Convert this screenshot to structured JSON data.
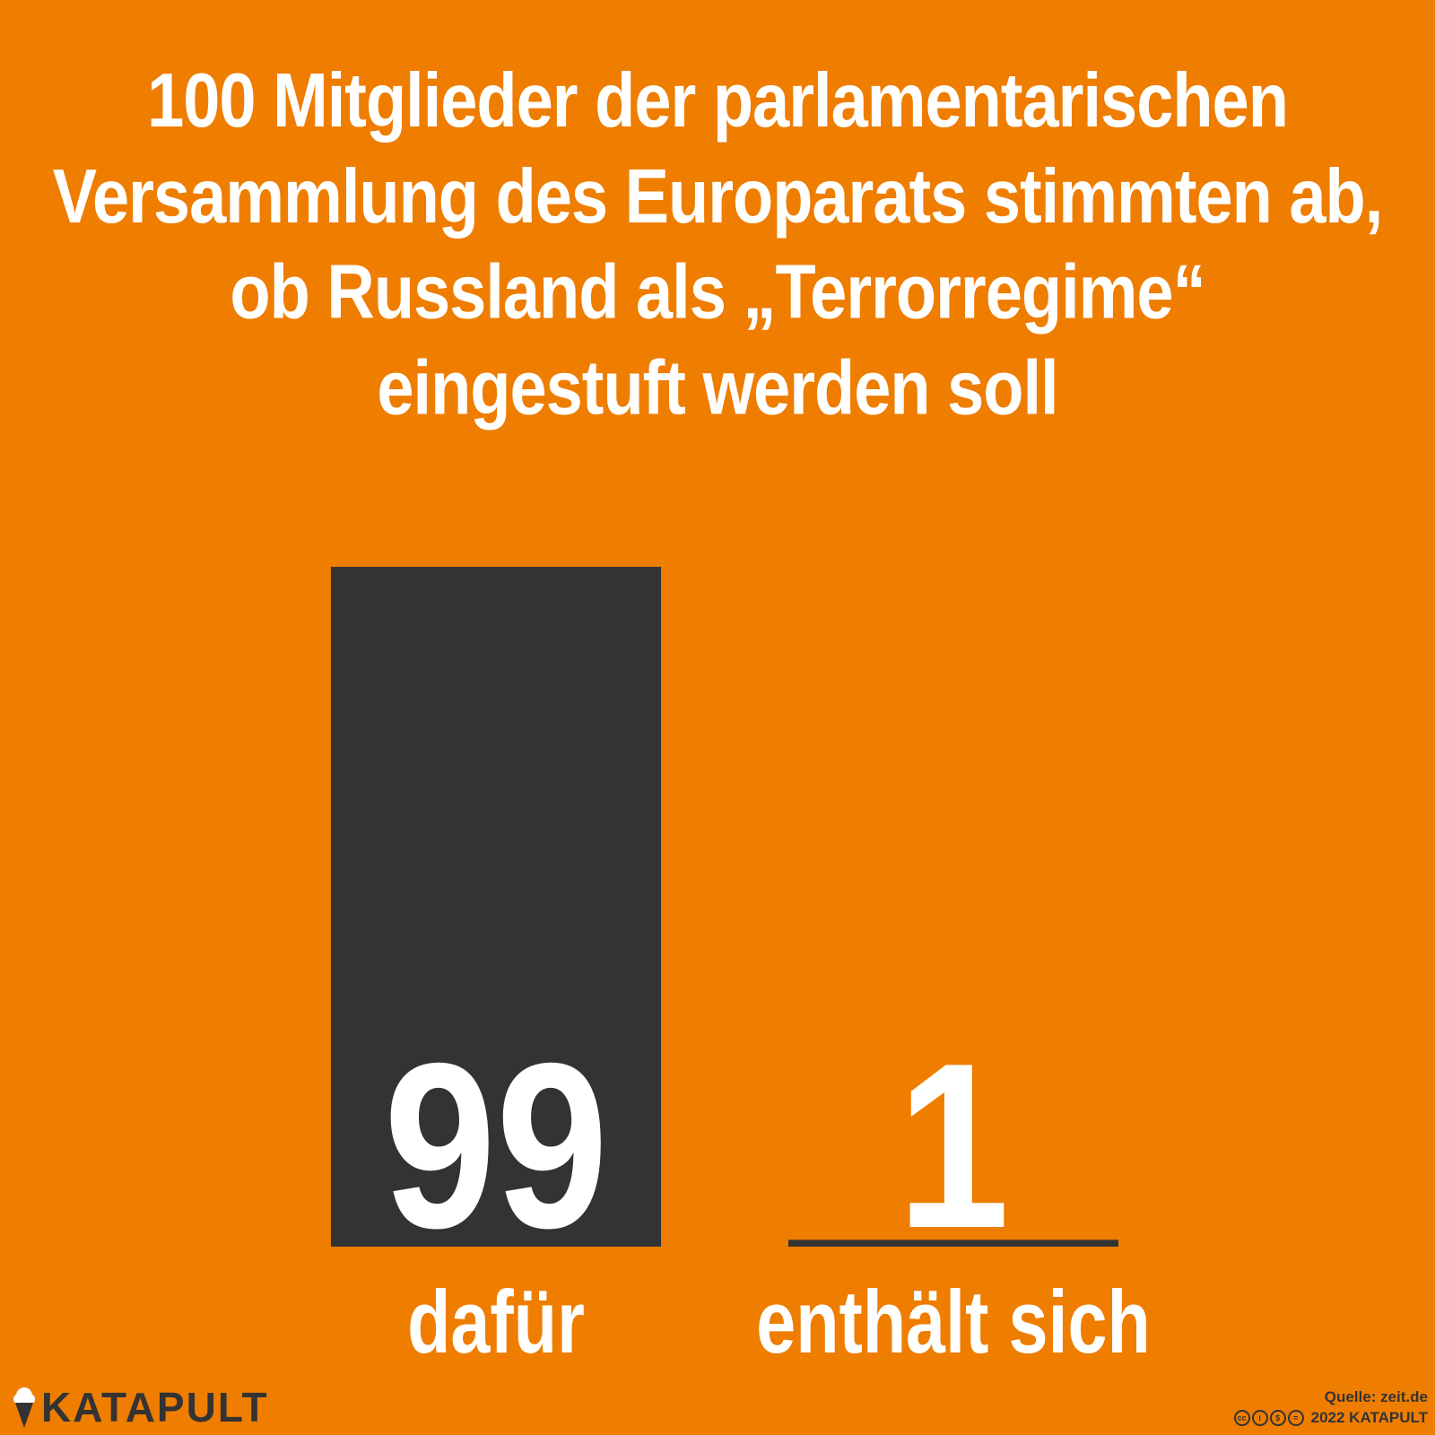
{
  "title_lines": [
    "100 Mitglieder der parlamentarischen",
    "Versammlung des Europarats stimmten ab,",
    "ob Russland als „Terrorregime“",
    "eingestuft werden soll"
  ],
  "chart_data": {
    "type": "bar",
    "categories": [
      "dafür",
      "enthält sich"
    ],
    "values": [
      99,
      1
    ],
    "value_labels": [
      "99",
      "1"
    ],
    "ylim": [
      0,
      99
    ],
    "title": "100 Mitglieder der parlamentarischen Versammlung des Europarats stimmten ab, ob Russland als „Terrorregime“ eingestuft werden soll",
    "grid": false,
    "legend": "none"
  },
  "colors": {
    "background": "#ee7d00",
    "bar": "#333333",
    "text": "#ffffff"
  },
  "footer": {
    "logo_text": "KATAPULT",
    "source": "Quelle: zeit.de",
    "copyright": "2022 KATAPULT",
    "license_icons": [
      "cc-icon",
      "by-icon",
      "nc-icon",
      "nd-icon"
    ]
  }
}
